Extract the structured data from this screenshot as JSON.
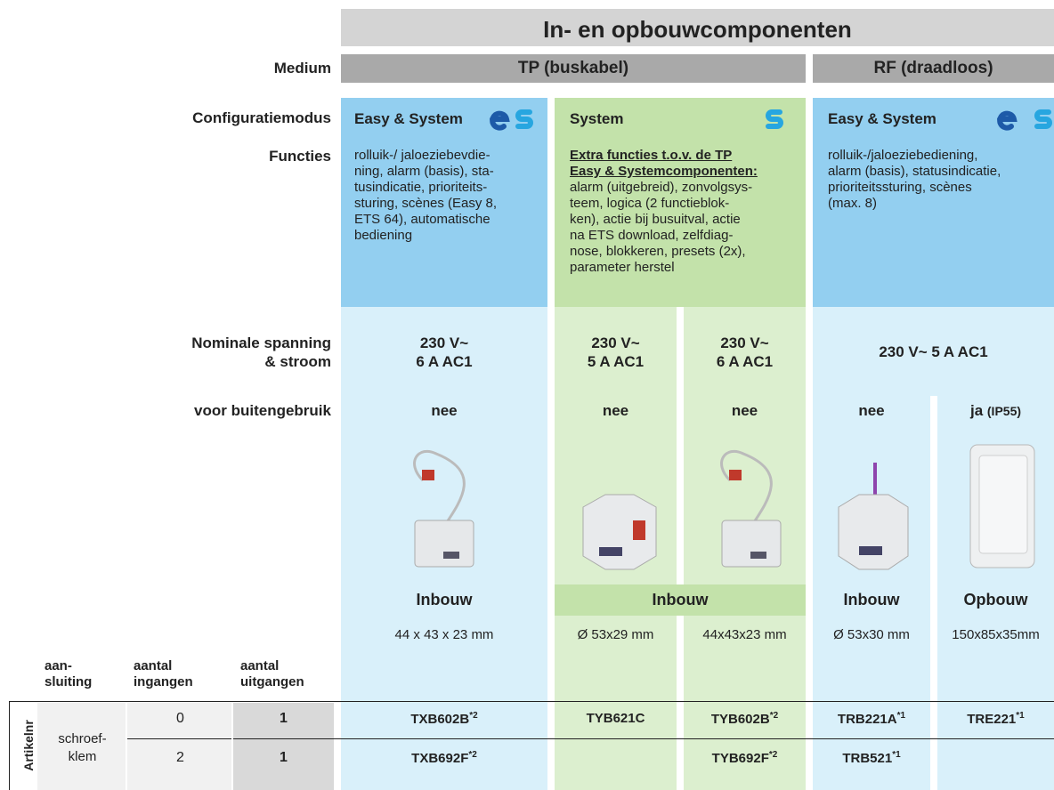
{
  "header": {
    "title": "In- en opbouwcomponenten"
  },
  "row_labels": {
    "medium": "Medium",
    "mode": "Configuratiemodus",
    "functions": "Functies",
    "rating": [
      "Nominale spanning",
      "& stroom"
    ],
    "outdoor": "voor buitengebruik"
  },
  "media": [
    "TP (buskabel)",
    "RF (draadloos)"
  ],
  "modes": [
    {
      "name": "Easy & System",
      "functions": [
        "rolluik-/ jaloeziebevdie-",
        "ning, alarm (basis), sta-",
        "tusindicatie, prioriteits-",
        "sturing, scènes (Easy 8,",
        "ETS 64), automatische",
        "bediening"
      ]
    },
    {
      "name": "System",
      "heading": [
        "Extra functies t.o.v. de TP ",
        "Easy & Systemcomponenten:"
      ],
      "functions": [
        "alarm (uitgebreid), zonvolgsys-",
        "teem, logica (2 functieblok-",
        "ken), actie bij busuitval, actie",
        "na ETS download, zelfdiag-",
        "nose, blokkeren, presets (2x),",
        "parameter herstel"
      ]
    },
    {
      "name": "Easy & System",
      "functions": [
        "rolluik-/jaloeziebediening,",
        "alarm (basis), statusindicatie,",
        "prioriteitssturing, scènes",
        "(max. 8)"
      ]
    }
  ],
  "ratings": [
    [
      "230 V~",
      "6 A  AC1"
    ],
    [
      "230 V~",
      "5 A  AC1"
    ],
    [
      "230 V~",
      "6 A  AC1"
    ],
    [
      "230 V~  5 A  AC1"
    ]
  ],
  "outdoor": [
    {
      "text": "nee"
    },
    {
      "text": "nee"
    },
    {
      "text": "nee"
    },
    {
      "text": "nee"
    },
    {
      "text": "ja",
      "note": "(IP55)"
    }
  ],
  "mounting": [
    "Inbouw",
    "Inbouw",
    "Inbouw",
    "Opbouw"
  ],
  "dimensions": [
    "44 x 43 x 23 mm",
    "Ø 53x29 mm",
    "44x43x23 mm",
    "Ø 53x30 mm",
    "150x85x35mm"
  ],
  "table": {
    "side_label": "Artikelnr",
    "headers": [
      [
        "aan-",
        "sluiting"
      ],
      [
        "aantal",
        "ingangen"
      ],
      [
        "aantal",
        "uitgangen"
      ]
    ],
    "connection": [
      "schroef-",
      "klem"
    ],
    "rows": [
      {
        "inputs": 0,
        "outputs": 1,
        "articles": [
          {
            "code": "TXB602B",
            "note": "*2"
          },
          {
            "code": "TYB621C"
          },
          {
            "code": "TYB602B",
            "note": "*2"
          },
          {
            "code": "TRB221A",
            "note": "*1"
          },
          {
            "code": "TRE221",
            "note": "*1"
          }
        ]
      },
      {
        "inputs": 2,
        "outputs": 1,
        "articles": [
          {
            "code": "TXB692F",
            "note": "*2"
          },
          null,
          {
            "code": "TYB692F",
            "note": "*2"
          },
          {
            "code": "TRB521",
            "note": "*1"
          },
          null
        ]
      }
    ]
  }
}
